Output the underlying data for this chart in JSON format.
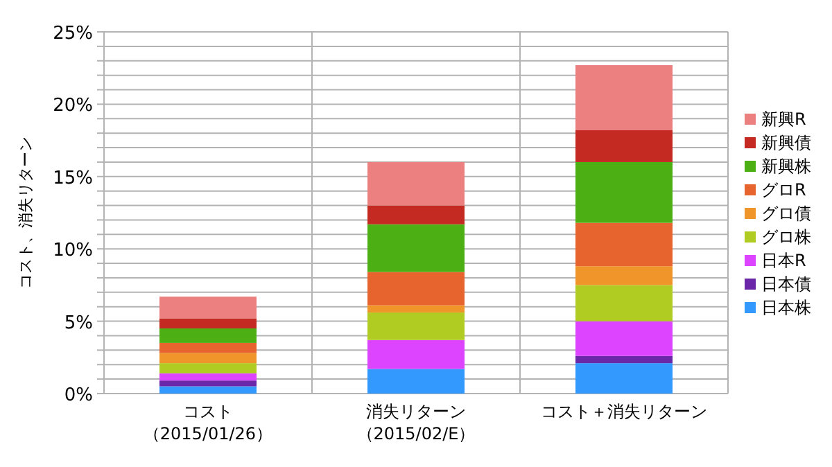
{
  "chart_data": {
    "type": "bar",
    "stacked": true,
    "ylabel": "コスト、消失リターン",
    "categories": [
      "コスト（2015/01/26）",
      "消失リターン（2015/02/E）",
      "コスト＋消失リターン"
    ],
    "series": [
      {
        "name": "日本株",
        "color": "#3399ff",
        "values": [
          0.5,
          1.7,
          2.1
        ]
      },
      {
        "name": "日本債",
        "color": "#6a28a8",
        "values": [
          0.4,
          0,
          0.5
        ]
      },
      {
        "name": "日本R",
        "color": "#dd44ff",
        "values": [
          0.5,
          2.0,
          2.4
        ]
      },
      {
        "name": "グロ株",
        "color": "#b0cc22",
        "values": [
          0.7,
          1.9,
          2.5
        ]
      },
      {
        "name": "グロ債",
        "color": "#f0952a",
        "values": [
          0.7,
          0.5,
          1.3
        ]
      },
      {
        "name": "グロR",
        "color": "#e8642e",
        "values": [
          0.7,
          2.3,
          3.0
        ]
      },
      {
        "name": "新興株",
        "color": "#4caf14",
        "values": [
          1.0,
          3.3,
          4.2
        ]
      },
      {
        "name": "新興債",
        "color": "#c52a22",
        "values": [
          0.7,
          1.3,
          2.2
        ]
      },
      {
        "name": "新興R",
        "color": "#ec8080",
        "values": [
          1.5,
          3.0,
          4.5
        ]
      }
    ],
    "ylim": [
      0,
      25
    ],
    "yticks": [
      {
        "value": 0,
        "label": "0%"
      },
      {
        "value": 1,
        "label": null
      },
      {
        "value": 2,
        "label": null
      },
      {
        "value": 3,
        "label": null
      },
      {
        "value": 4,
        "label": null
      },
      {
        "value": 5,
        "label": "5%"
      },
      {
        "value": 6,
        "label": null
      },
      {
        "value": 7,
        "label": null
      },
      {
        "value": 8,
        "label": null
      },
      {
        "value": 9,
        "label": null
      },
      {
        "value": 10,
        "label": "10%"
      },
      {
        "value": 11,
        "label": null
      },
      {
        "value": 12,
        "label": null
      },
      {
        "value": 13,
        "label": null
      },
      {
        "value": 14,
        "label": null
      },
      {
        "value": 15,
        "label": "15%"
      },
      {
        "value": 16,
        "label": null
      },
      {
        "value": 17,
        "label": null
      },
      {
        "value": 18,
        "label": null
      },
      {
        "value": 19,
        "label": null
      },
      {
        "value": 20,
        "label": "20%"
      },
      {
        "value": 21,
        "label": null
      },
      {
        "value": 22,
        "label": null
      },
      {
        "value": 23,
        "label": null
      },
      {
        "value": 24,
        "label": null
      },
      {
        "value": 25,
        "label": "25%"
      }
    ],
    "grid": true,
    "legend": "right"
  }
}
